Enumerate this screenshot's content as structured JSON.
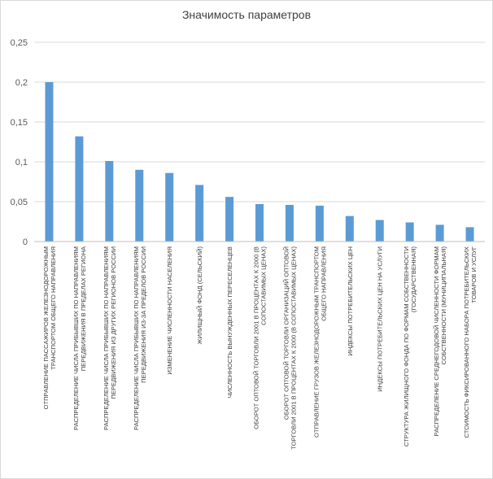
{
  "chart_data": {
    "type": "bar",
    "title": "Значимость параметров",
    "xlabel": "",
    "ylabel": "",
    "ylim": [
      0,
      0.25
    ],
    "yticks": [
      "0",
      "0,05",
      "0,1",
      "0,15",
      "0,2",
      "0,25"
    ],
    "grid": true,
    "bar_color": "#5B9BD5",
    "categories": [
      [
        "ОТПРАВЛЕНИЕ ПАССАЖИРОВ ЖЕЛЕЗНОДОРОЖНЫМ",
        "ТРАНСПОРТОМ ОБЩЕГО НАПРАВЛЕНИЯ"
      ],
      [
        "РАСПРЕДЕЛЕНИЕ ЧИСЛА ПРИБЫВШИХ ПО НАПРАВЛЕНИЯМ",
        "ПЕРЕДВИЖЕНИЯ В ПРЕДЕЛАХ РЕГИОНА"
      ],
      [
        "РАСПРЕДЕЛЕНИЕ ЧИСЛА ПРИБЫВШИХ ПО НАПРАВЛЕНИЯМ",
        "ПЕРЕДВИЖЕНИЯ ИЗ ДРУГИХ РЕГИОНОВ РОССИИ"
      ],
      [
        "РАСПРЕДЕЛЕНИЕ ЧИСЛА ПРИБЫВШИХ ПО НАПРАВЛЕНИЯМ",
        "ПЕРЕДВИЖЕНИЯ ИЗ-ЗА ПРЕДЕЛОВ РОССИИ"
      ],
      [
        "ИЗМЕНЕНИЕ ЧИСЛЕННОСТИ НАСЕЛЕНИЯ"
      ],
      [
        "ЖИЛИЩНЫЙ ФОНД (СЕЛЬСКИЙ)"
      ],
      [
        "ЧИСЛЕННОСТЬ ВЫНУЖДЕННЫХ ПЕРЕСЕЛЕНЦЕВ"
      ],
      [
        "ОБОРОТ ОПТОВОЙ ТОРГОВЛИ 2001 В ПРОЦЕНТАХ К 2000 (В",
        "СОПОСТАВИМЫХ ЦЕНАХ)"
      ],
      [
        "ОБОРОТ ОПТОВОЙ ТОРГОВЛИ ОРГАНИЗАЦИЙ ОПТОВОЙ",
        "ТОРГОВЛИ 2001 В ПРОЦЕНТАХ К 2000 (В СОПОСТАВИМЫХ ЦЕНАХ)"
      ],
      [
        "ОТПРАВЛЕНИЕ ГРУЗОВ ЖЕЛЕЗНОДОРОЖНЫМ ТРАНСПОРТОМ",
        "ОБЩЕГО НАПРАВЛЕНИЯ"
      ],
      [
        "ИНДЕКСЫ ПОТРЕБИТЕЛЬСКИХ ЦЕН"
      ],
      [
        "ИНДЕКСЫ ПОТРЕБИТЕЛЬСКИХ ЦЕН НА УСЛУГИ"
      ],
      [
        "СТРУКТУРА ЖИЛИЩНОГО ФОНДА ПО ФОРМАМ СОБСТВЕННОСТИ",
        "(ГОСУДАРСТВЕННАЯ)"
      ],
      [
        "РАСПРЕДЕЛЕНИЕ СРЕДНЕГОДОВОЙ ЧИСЛЕННОСТИ ФОРМАМ",
        "СОБСТВЕННОСТИ (МУНИЦИПАЛЬНАЯ)"
      ],
      [
        "СТОИМОСТЬ ФИКСИРОВАННОГО НАБОРА ПОТРЕБИТЕЛЬСКИХ",
        "ТОВАРОВ И УСЛУГ"
      ]
    ],
    "values": [
      0.2,
      0.132,
      0.101,
      0.09,
      0.086,
      0.071,
      0.056,
      0.047,
      0.046,
      0.045,
      0.032,
      0.027,
      0.024,
      0.021,
      0.018
    ]
  }
}
